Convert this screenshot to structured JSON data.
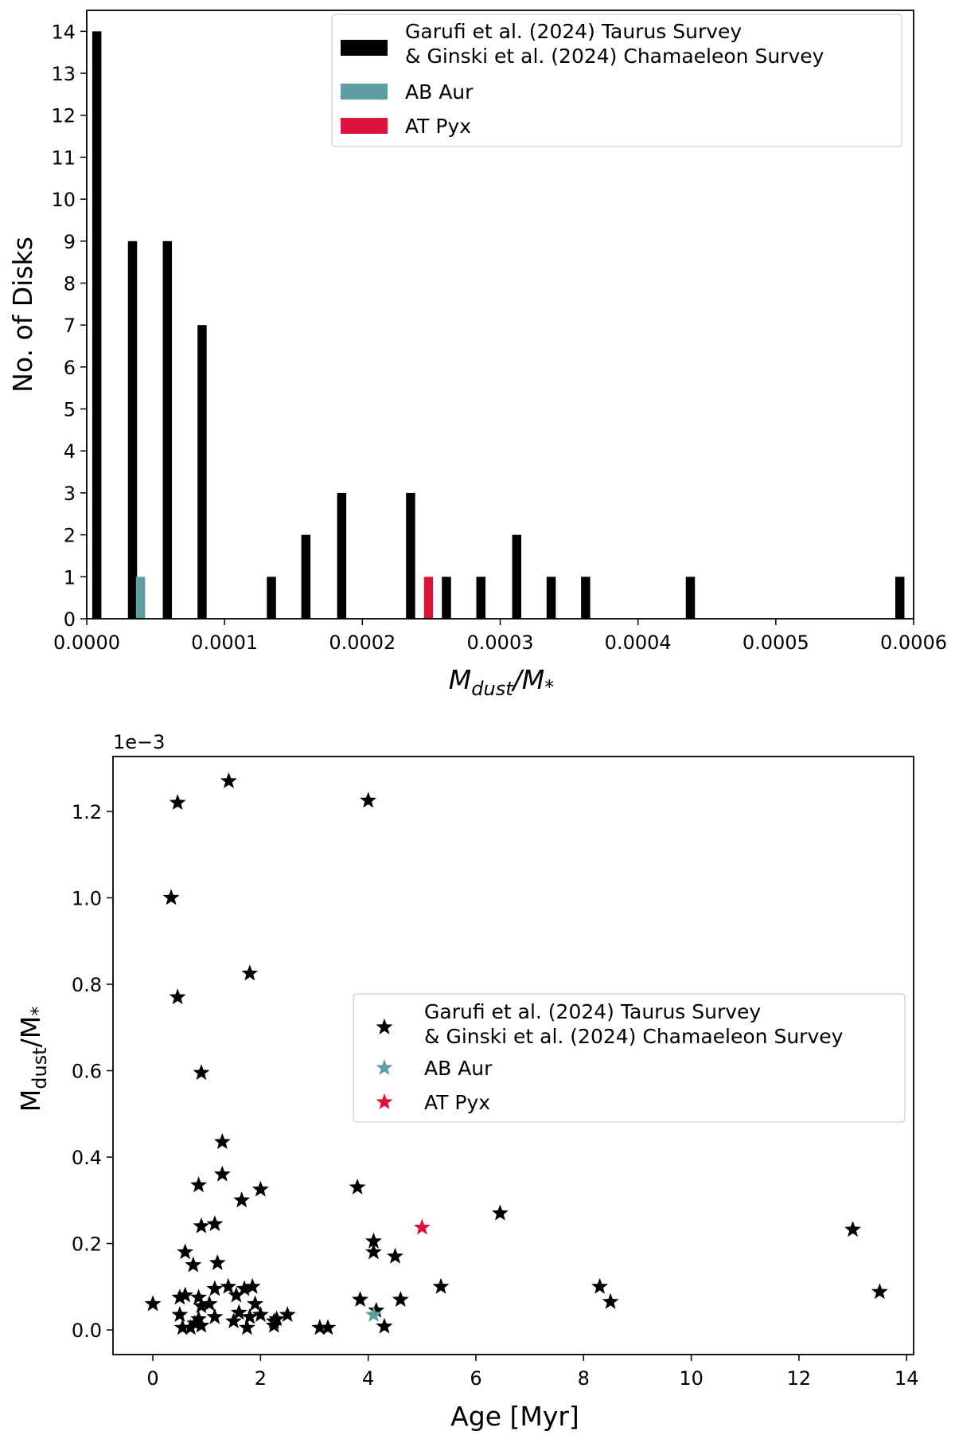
{
  "chart_data": [
    {
      "type": "bar",
      "title": "",
      "xlabel": "M_dust/M_*",
      "ylabel": "No. of Disks",
      "xlim": [
        0,
        0.0006
      ],
      "ylim": [
        0,
        14.5
      ],
      "xticks": [
        0,
        0.0001,
        0.0002,
        0.0003,
        0.0004,
        0.0005,
        0.0006
      ],
      "xtick_labels": [
        "0.0000",
        "0.0001",
        "0.0002",
        "0.0003",
        "0.0004",
        "0.0005",
        "0.0006"
      ],
      "yticks": [
        0,
        1,
        2,
        3,
        4,
        5,
        6,
        7,
        8,
        9,
        10,
        11,
        12,
        13,
        14
      ],
      "ytick_labels": [
        "0",
        "1",
        "2",
        "3",
        "4",
        "5",
        "6",
        "7",
        "8",
        "9",
        "10",
        "11",
        "12",
        "13",
        "14"
      ],
      "grid": false,
      "legend_position": "top-right",
      "series": [
        {
          "name": "Garufi et al. (2024) Taurus Survey\n& Ginski et al. (2024) Chamaeleon Survey",
          "legend_lines": [
            "Garufi et al. (2024) Taurus Survey",
            "& Ginski et al. (2024) Chamaeleon Survey"
          ],
          "color": "#000000",
          "x": [
            7.3e-06,
            3.32e-05,
            5.85e-05,
            8.37e-05,
            0.000134,
            0.000159,
            0.000185,
            0.000235,
            0.000261,
            0.000286,
            0.000312,
            0.000337,
            0.000362,
            0.000438,
            0.00059
          ],
          "values": [
            14,
            9,
            9,
            7,
            1,
            2,
            3,
            3,
            1,
            1,
            2,
            1,
            1,
            1,
            1
          ]
        },
        {
          "name": "AB Aur",
          "legend_lines": [
            "AB Aur"
          ],
          "color": "#5f9ea0",
          "x": [
            3.9e-05
          ],
          "values": [
            1
          ]
        },
        {
          "name": "AT Pyx",
          "legend_lines": [
            "AT Pyx"
          ],
          "color": "#dc143c",
          "x": [
            0.000248
          ],
          "values": [
            1
          ]
        }
      ]
    },
    {
      "type": "scatter",
      "title": "",
      "xlabel": "Age [Myr]",
      "ylabel": "M_dust/M_*",
      "y_offset_label": "1e−3",
      "xlim": [
        -0.74,
        14.13
      ],
      "ylim": [
        -0.057,
        1.327
      ],
      "xticks": [
        0,
        2,
        4,
        6,
        8,
        10,
        12,
        14
      ],
      "xtick_labels": [
        "0",
        "2",
        "4",
        "6",
        "8",
        "10",
        "12",
        "14"
      ],
      "yticks": [
        0,
        0.2,
        0.4,
        0.6,
        0.8,
        1.0,
        1.2
      ],
      "ytick_labels": [
        "0.0",
        "0.2",
        "0.4",
        "0.6",
        "0.8",
        "1.0",
        "1.2"
      ],
      "grid": false,
      "legend_position": "center-right",
      "marker": "star",
      "series": [
        {
          "name": "Garufi et al. (2024) Taurus Survey\n& Ginski et al. (2024) Chamaeleon Survey",
          "legend_lines": [
            "Garufi et al. (2024) Taurus Survey",
            "& Ginski et al. (2024) Chamaeleon Survey"
          ],
          "color": "#000000",
          "points": [
            [
              0,
              0.06
            ],
            [
              0.46,
              1.22
            ],
            [
              1.41,
              1.27
            ],
            [
              4.0,
              1.225
            ],
            [
              0.34,
              1.0
            ],
            [
              1.8,
              0.825
            ],
            [
              0.46,
              0.77
            ],
            [
              0.9,
              0.595
            ],
            [
              1.29,
              0.435
            ],
            [
              1.29,
              0.36
            ],
            [
              0.85,
              0.335
            ],
            [
              1.65,
              0.3
            ],
            [
              2.0,
              0.325
            ],
            [
              0.9,
              0.24
            ],
            [
              1.15,
              0.245
            ],
            [
              0.6,
              0.18
            ],
            [
              0.75,
              0.15
            ],
            [
              1.2,
              0.155
            ],
            [
              3.8,
              0.33
            ],
            [
              4.1,
              0.205
            ],
            [
              4.1,
              0.18
            ],
            [
              4.5,
              0.17
            ],
            [
              6.45,
              0.27
            ],
            [
              5.35,
              0.1
            ],
            [
              4.6,
              0.07
            ],
            [
              3.85,
              0.07
            ],
            [
              4.15,
              0.045
            ],
            [
              4.3,
              0.008
            ],
            [
              3.1,
              0.005
            ],
            [
              3.25,
              0.005
            ],
            [
              8.3,
              0.1
            ],
            [
              8.5,
              0.065
            ],
            [
              13.0,
              0.232
            ],
            [
              13.5,
              0.088
            ],
            [
              0.5,
              0.075
            ],
            [
              0.6,
              0.08
            ],
            [
              0.5,
              0.035
            ],
            [
              0.55,
              0.005
            ],
            [
              0.7,
              0.005
            ],
            [
              0.78,
              0.015
            ],
            [
              0.85,
              0.025
            ],
            [
              0.85,
              0.075
            ],
            [
              0.9,
              0.055
            ],
            [
              1.05,
              0.06
            ],
            [
              1.15,
              0.095
            ],
            [
              1.15,
              0.03
            ],
            [
              1.4,
              0.1
            ],
            [
              1.55,
              0.08
            ],
            [
              1.6,
              0.04
            ],
            [
              1.5,
              0.02
            ],
            [
              1.75,
              0.005
            ],
            [
              1.8,
              0.03
            ],
            [
              1.7,
              0.095
            ],
            [
              1.85,
              0.1
            ],
            [
              1.9,
              0.06
            ],
            [
              2.0,
              0.035
            ],
            [
              2.25,
              0.02
            ],
            [
              2.3,
              0.025
            ],
            [
              2.25,
              0.01
            ],
            [
              2.5,
              0.035
            ],
            [
              0.9,
              0.01
            ]
          ]
        },
        {
          "name": "AB Aur",
          "legend_lines": [
            "AB Aur"
          ],
          "color": "#5f9ea0",
          "points": [
            [
              4.1,
              0.035
            ]
          ]
        },
        {
          "name": "AT Pyx",
          "legend_lines": [
            "AT Pyx"
          ],
          "color": "#dc143c",
          "points": [
            [
              5.0,
              0.237
            ]
          ]
        }
      ]
    }
  ]
}
